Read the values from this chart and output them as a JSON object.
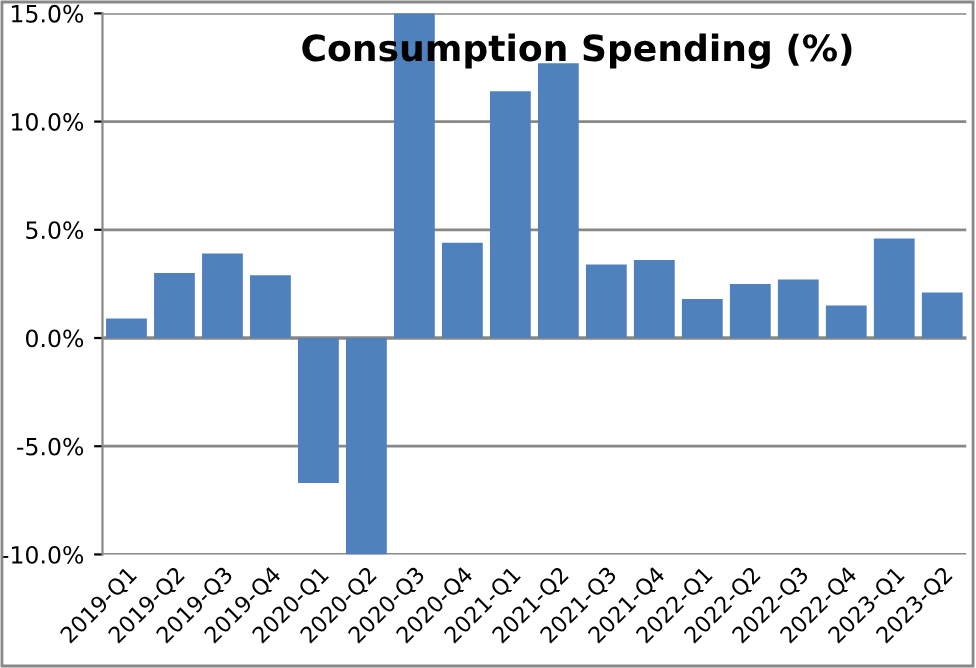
{
  "chart_data": {
    "type": "bar",
    "title": "Consumption Spending (%)",
    "categories": [
      "2019-Q1",
      "2019-Q2",
      "2019-Q3",
      "2019-Q4",
      "2020-Q1",
      "2020-Q2",
      "2020-Q3",
      "2020-Q4",
      "2021-Q1",
      "2021-Q2",
      "2021-Q3",
      "2021-Q4",
      "2022-Q1",
      "2022-Q2",
      "2022-Q3",
      "2022-Q4",
      "2023-Q1",
      "2023-Q2"
    ],
    "values": [
      0.9,
      3.0,
      3.9,
      2.9,
      -6.7,
      -10.0,
      15.0,
      4.4,
      11.4,
      12.7,
      3.4,
      3.6,
      1.8,
      2.5,
      2.7,
      1.5,
      4.6,
      2.1
    ],
    "color": "#4f81bd",
    "ylim": [
      -10,
      15
    ],
    "yticks": [
      {
        "value": -10,
        "label": "-10.0%"
      },
      {
        "value": -5,
        "label": "-5.0%"
      },
      {
        "value": 0,
        "label": "0.0%"
      },
      {
        "value": 5,
        "label": "5.0%"
      },
      {
        "value": 10,
        "label": "10.0%"
      },
      {
        "value": 15,
        "label": "15.0%"
      }
    ],
    "grid": "y"
  }
}
